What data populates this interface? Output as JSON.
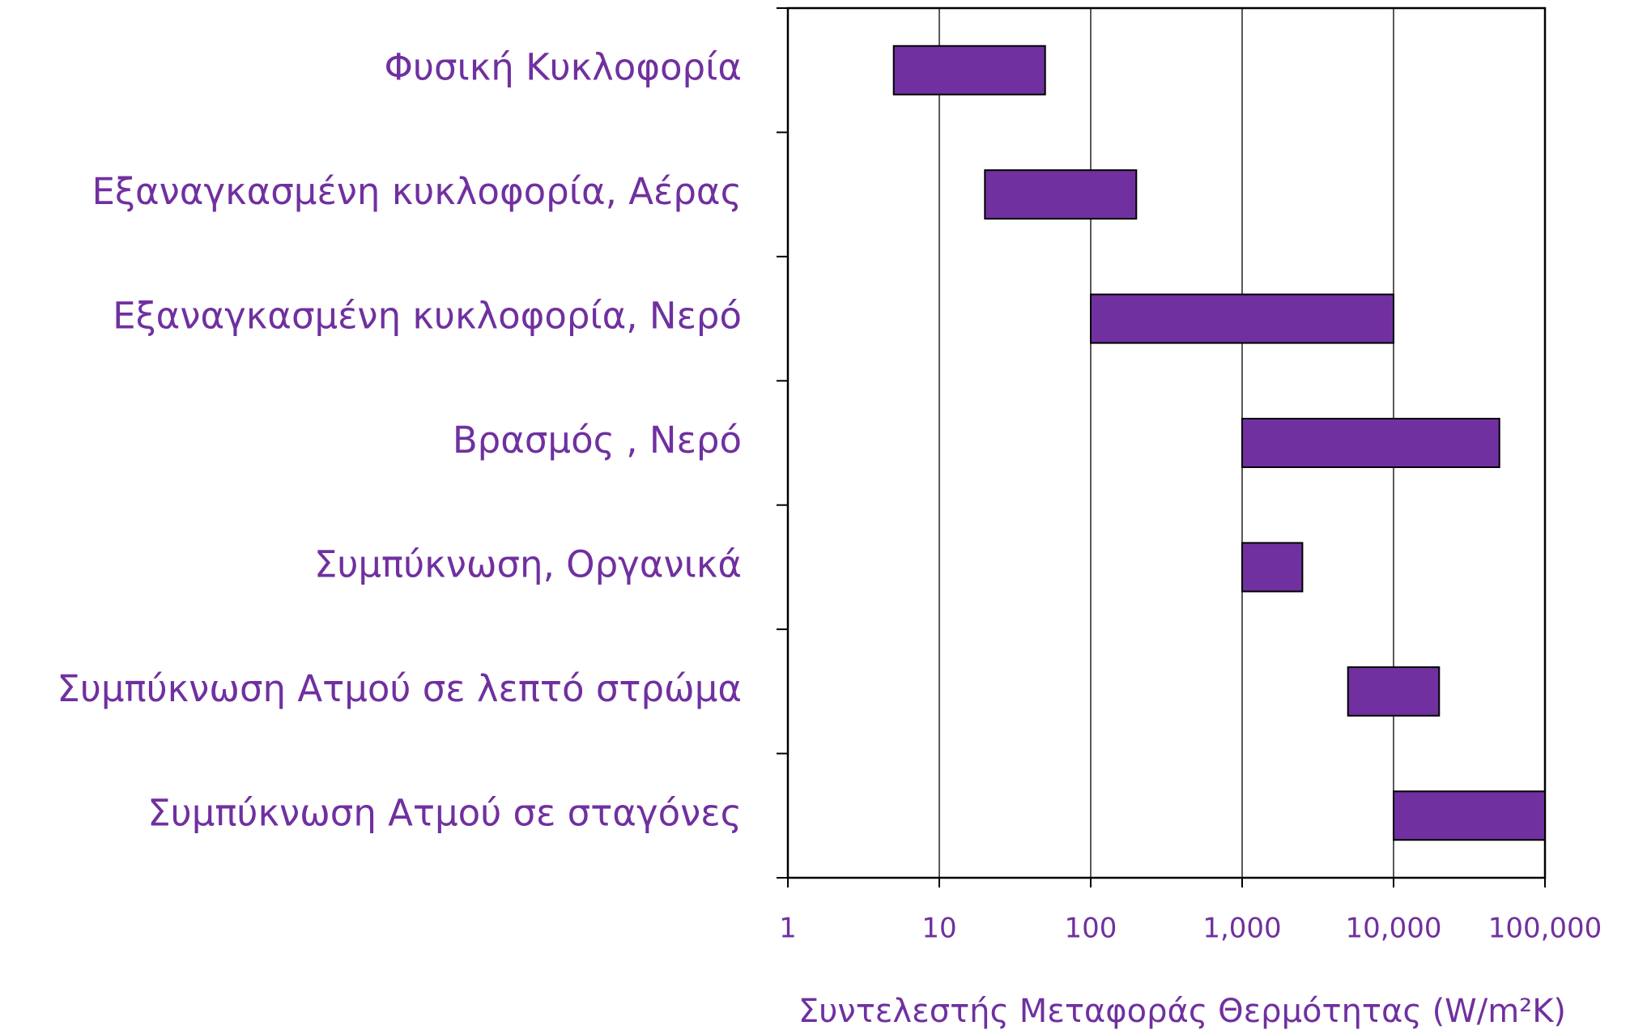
{
  "chart_data": {
    "type": "range_bar",
    "x_label": "Συντελεστής Μεταφοράς Θερμότητας (W/m²K)",
    "categories": [
      "Φυσική Κυκλοφορία",
      "Εξαναγκασμένη κυκλοφορία, Αέρας",
      "Εξαναγκασμένη κυκλοφορία, Νερό",
      "Βρασμός , Νερό",
      "Συμπύκνωση, Οργανικά",
      "Συμπύκνωση Ατμού σε λεπτό στρώμα",
      "Συμπύκνωση Ατμού σε σταγόνες"
    ],
    "low": [
      5,
      20,
      100,
      1000,
      1000,
      5000,
      10000
    ],
    "high": [
      50,
      200,
      10000,
      50000,
      2500,
      20000,
      100000
    ],
    "color": "#7030a0",
    "xscale": "log",
    "xlim": [
      1,
      100000
    ],
    "xticks": [
      1,
      10,
      100,
      {
        "value": 1000,
        "label": "1,000"
      },
      {
        "value": 10000,
        "label": "10,000"
      },
      {
        "value": 100000,
        "label": "100,000"
      }
    ],
    "grid": true
  }
}
